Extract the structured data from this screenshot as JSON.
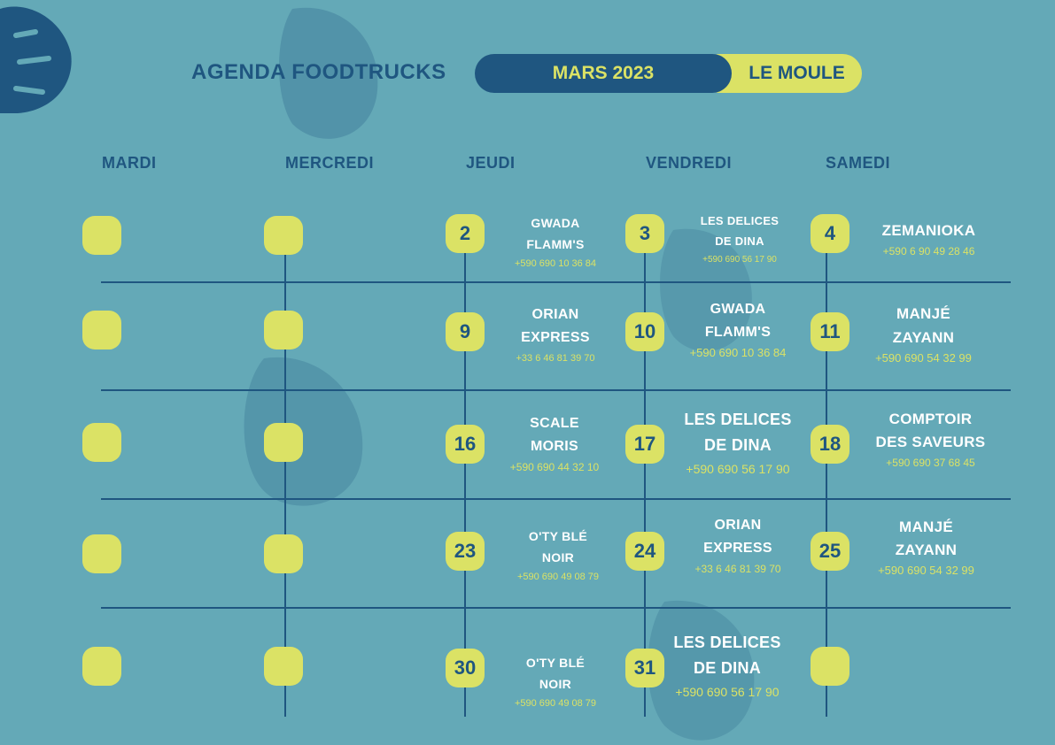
{
  "header": {
    "title": "AGENDA FOODTRUCKS",
    "month": "MARS 2023",
    "location": "LE MOULE"
  },
  "days": [
    "MARDI",
    "MERCREDI",
    "JEUDI",
    "VENDREDI",
    "SAMEDI"
  ],
  "colors": {
    "background": "#64a9b7",
    "navy": "#1f5680",
    "lime": "#dbe265",
    "white": "#ffffff"
  },
  "decorations": [
    "monstera-leaf-icon"
  ],
  "weeks": [
    {
      "jeudi": {
        "date": "2",
        "name": [
          "GWADA",
          "FLAMM'S"
        ],
        "phone": "+590 690 10 36 84"
      },
      "vendredi": {
        "date": "3",
        "name": [
          "LES DELICES",
          "DE DINA"
        ],
        "phone": "+590 690 56 17 90"
      },
      "samedi": {
        "date": "4",
        "name": [
          "ZEMANIOKA"
        ],
        "phone": "+590 6 90 49 28 46"
      }
    },
    {
      "jeudi": {
        "date": "9",
        "name": [
          "ORIAN",
          "EXPRESS"
        ],
        "phone": "+33 6 46 81 39 70"
      },
      "vendredi": {
        "date": "10",
        "name": [
          "GWADA",
          "FLAMM'S"
        ],
        "phone": "+590 690 10 36 84"
      },
      "samedi": {
        "date": "11",
        "name": [
          "MANJÉ",
          "ZAYANN"
        ],
        "phone": "+590 690 54 32 99"
      }
    },
    {
      "jeudi": {
        "date": "16",
        "name": [
          "SCALE",
          "MORIS"
        ],
        "phone": "+590 690 44 32 10"
      },
      "vendredi": {
        "date": "17",
        "name": [
          "LES DELICES",
          "DE DINA"
        ],
        "phone": "+590 690 56 17 90"
      },
      "samedi": {
        "date": "18",
        "name": [
          "COMPTOIR",
          "DES SAVEURS"
        ],
        "phone": "+590 690 37 68 45"
      }
    },
    {
      "jeudi": {
        "date": "23",
        "name": [
          "O'TY BLÉ",
          "NOIR"
        ],
        "phone": "+590 690 49 08 79"
      },
      "vendredi": {
        "date": "24",
        "name": [
          "ORIAN",
          "EXPRESS"
        ],
        "phone": "+33 6 46 81 39 70"
      },
      "samedi": {
        "date": "25",
        "name": [
          "MANJÉ",
          "ZAYANN"
        ],
        "phone": "+590 690 54 32 99"
      }
    },
    {
      "jeudi": {
        "date": "30",
        "name": [
          "O'TY BLÉ",
          "NOIR"
        ],
        "phone": "+590 690 49 08 79"
      },
      "vendredi": {
        "date": "31",
        "name": [
          "LES DELICES",
          "DE DINA"
        ],
        "phone": "+590 690 56 17 90"
      }
    }
  ]
}
